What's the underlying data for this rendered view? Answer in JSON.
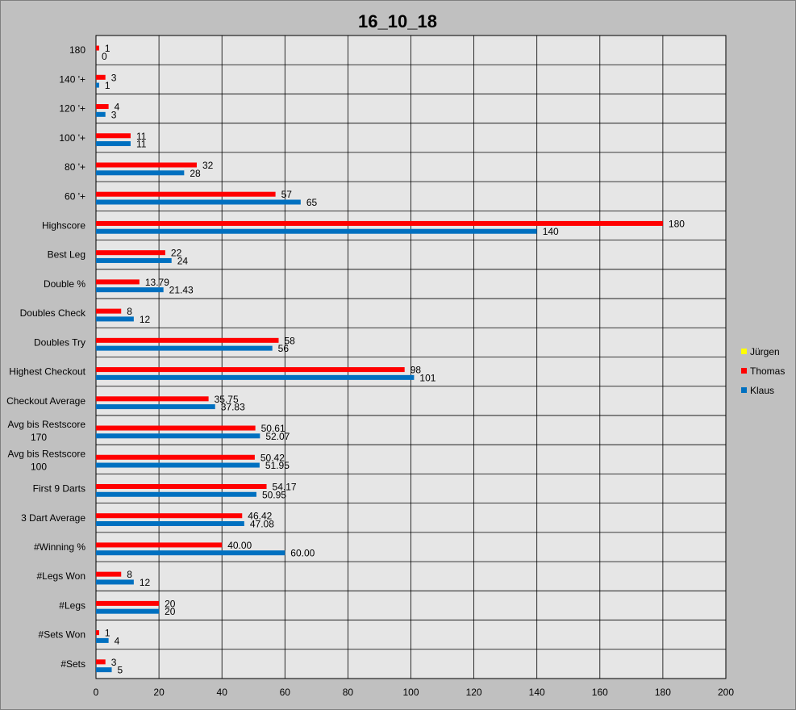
{
  "chart_data": {
    "type": "bar",
    "orientation": "horizontal",
    "title": "16_10_18",
    "categories": [
      [
        "180"
      ],
      [
        "140 '+"
      ],
      [
        "120 '+"
      ],
      [
        "100 '+"
      ],
      [
        "80 '+"
      ],
      [
        "60 '+"
      ],
      [
        "Highscore"
      ],
      [
        "Best Leg"
      ],
      [
        "Double %"
      ],
      [
        "Doubles Check"
      ],
      [
        "Doubles Try"
      ],
      [
        "Highest Checkout"
      ],
      [
        "Checkout Average"
      ],
      [
        "Avg bis Restscore",
        "170"
      ],
      [
        "Avg bis Restscore",
        "100"
      ],
      [
        "First 9 Darts"
      ],
      [
        "3 Dart Average"
      ],
      [
        "#Winning %"
      ],
      [
        "#Legs Won"
      ],
      [
        "#Legs"
      ],
      [
        "#Sets Won"
      ],
      [
        "#Sets"
      ]
    ],
    "series": [
      {
        "name": "Jürgen",
        "color": "#ffff00",
        "values": [
          null,
          null,
          null,
          null,
          null,
          null,
          null,
          null,
          null,
          null,
          null,
          null,
          null,
          null,
          null,
          null,
          null,
          null,
          null,
          null,
          null,
          null
        ],
        "labels": []
      },
      {
        "name": "Thomas",
        "color": "#ff0000",
        "values": [
          1,
          3,
          4,
          11,
          32,
          57,
          180,
          22,
          13.79,
          8,
          58,
          98,
          35.75,
          50.61,
          50.42,
          54.17,
          46.42,
          40.0,
          8,
          20,
          1,
          3
        ],
        "labels": [
          "1",
          "3",
          "4",
          "11",
          "32",
          "57",
          "180",
          "22",
          "13.79",
          "8",
          "58",
          "98",
          "35.75",
          "50.61",
          "50.42",
          "54.17",
          "46.42",
          "40.00",
          "8",
          "20",
          "1",
          "3"
        ]
      },
      {
        "name": "Klaus",
        "color": "#0070c0",
        "values": [
          0,
          1,
          3,
          11,
          28,
          65,
          140,
          24,
          21.43,
          12,
          56,
          101,
          37.83,
          52.07,
          51.95,
          50.95,
          47.08,
          60.0,
          12,
          20,
          4,
          5
        ],
        "labels": [
          "0",
          "1",
          "3",
          "11",
          "28",
          "65",
          "140",
          "24",
          "21.43",
          "12",
          "56",
          "101",
          "37.83",
          "52.07",
          "51.95",
          "50.95",
          "47.08",
          "60.00",
          "12",
          "20",
          "4",
          "5"
        ]
      }
    ],
    "xlim": [
      0,
      200
    ],
    "xticks": [
      "0",
      "20",
      "40",
      "60",
      "80",
      "100",
      "120",
      "140",
      "160",
      "180",
      "200"
    ],
    "grid": true,
    "legend_position": "right",
    "plot_background": "#e6e6e6",
    "chart_background": "#c0c0c0"
  }
}
